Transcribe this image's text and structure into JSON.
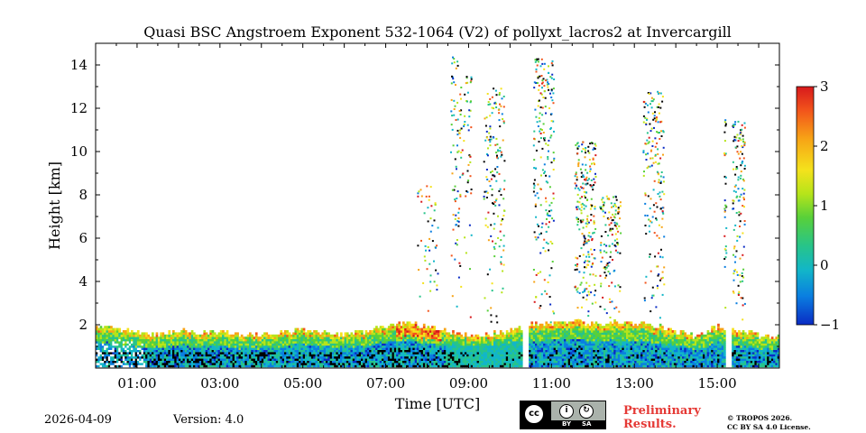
{
  "chart_data": {
    "type": "heatmap",
    "title": "Quasi BSC Angstroem Exponent 532-1064 (V2) of pollyxt_lacros2 at Invercargill",
    "xlabel": "Time [UTC]",
    "ylabel": "Height [km]",
    "xlim_hours": [
      0,
      16.5
    ],
    "ylim_km": [
      0,
      15
    ],
    "x_ticks": [
      {
        "value": 1,
        "label": "01:00"
      },
      {
        "value": 3,
        "label": "03:00"
      },
      {
        "value": 5,
        "label": "05:00"
      },
      {
        "value": 7,
        "label": "07:00"
      },
      {
        "value": 9,
        "label": "09:00"
      },
      {
        "value": 11,
        "label": "11:00"
      },
      {
        "value": 13,
        "label": "13:00"
      },
      {
        "value": 15,
        "label": "15:00"
      }
    ],
    "y_ticks": [
      {
        "value": 2,
        "label": "2"
      },
      {
        "value": 4,
        "label": "4"
      },
      {
        "value": 6,
        "label": "6"
      },
      {
        "value": 8,
        "label": "8"
      },
      {
        "value": 10,
        "label": "10"
      },
      {
        "value": 12,
        "label": "12"
      },
      {
        "value": 14,
        "label": "14"
      }
    ],
    "colorbar": {
      "min": -1,
      "max": 3,
      "ticks": [
        {
          "value": 3,
          "label": "3"
        },
        {
          "value": 2,
          "label": "2"
        },
        {
          "value": 1,
          "label": "1"
        },
        {
          "value": 0,
          "label": "0"
        },
        {
          "value": -1,
          "label": "−1"
        }
      ],
      "colormap": [
        "#0a2bc4",
        "#0a7ee0",
        "#12b6c8",
        "#27c48a",
        "#58d03a",
        "#b6e41a",
        "#f4e21c",
        "#f7a416",
        "#f2541b",
        "#d7191c"
      ]
    },
    "boundary_layer_top_km": [
      [
        0.0,
        1.9
      ],
      [
        0.5,
        1.75
      ],
      [
        1.0,
        1.6
      ],
      [
        1.5,
        1.5
      ],
      [
        2.0,
        1.7
      ],
      [
        2.5,
        1.55
      ],
      [
        3.0,
        1.6
      ],
      [
        3.5,
        1.5
      ],
      [
        4.0,
        1.5
      ],
      [
        4.5,
        1.6
      ],
      [
        5.0,
        1.7
      ],
      [
        5.5,
        1.55
      ],
      [
        6.0,
        1.55
      ],
      [
        6.5,
        1.65
      ],
      [
        7.0,
        1.9
      ],
      [
        7.5,
        2.05
      ],
      [
        8.0,
        1.85
      ],
      [
        8.5,
        1.6
      ],
      [
        9.0,
        1.45
      ],
      [
        9.5,
        1.5
      ],
      [
        10.0,
        1.7
      ],
      [
        10.5,
        2.0
      ],
      [
        11.0,
        2.05
      ],
      [
        11.5,
        2.1
      ],
      [
        12.0,
        2.0
      ],
      [
        12.5,
        2.1
      ],
      [
        13.0,
        2.0
      ],
      [
        13.5,
        1.9
      ],
      [
        14.0,
        1.6
      ],
      [
        14.5,
        1.4
      ],
      [
        15.0,
        1.9
      ],
      [
        15.5,
        1.65
      ],
      [
        16.0,
        1.45
      ],
      [
        16.5,
        1.35
      ]
    ],
    "data_gaps_hours": [
      [
        10.28,
        10.45
      ],
      [
        15.2,
        15.35
      ]
    ],
    "cloud_columns": [
      {
        "time": 8.0,
        "top_km": 8.5,
        "density": 0.2
      },
      {
        "time": 8.8,
        "top_km": 14.5,
        "density": 0.5
      },
      {
        "time": 9.6,
        "top_km": 13.0,
        "density": 0.6
      },
      {
        "time": 10.8,
        "top_km": 14.5,
        "density": 0.8
      },
      {
        "time": 11.8,
        "top_km": 10.5,
        "density": 0.9
      },
      {
        "time": 12.4,
        "top_km": 8.0,
        "density": 0.5
      },
      {
        "time": 13.45,
        "top_km": 12.8,
        "density": 0.7
      },
      {
        "time": 15.4,
        "top_km": 11.5,
        "density": 0.9
      }
    ]
  },
  "footer": {
    "date": "2026-04-09",
    "version": "Version: 4.0",
    "preliminary": "Preliminary Results.",
    "copyright_line1": "© TROPOS 2026.",
    "copyright_line2": "CC BY SA 4.0 License.",
    "license_badge": {
      "cc": "cc",
      "by": "BY",
      "sa": "SA"
    }
  }
}
